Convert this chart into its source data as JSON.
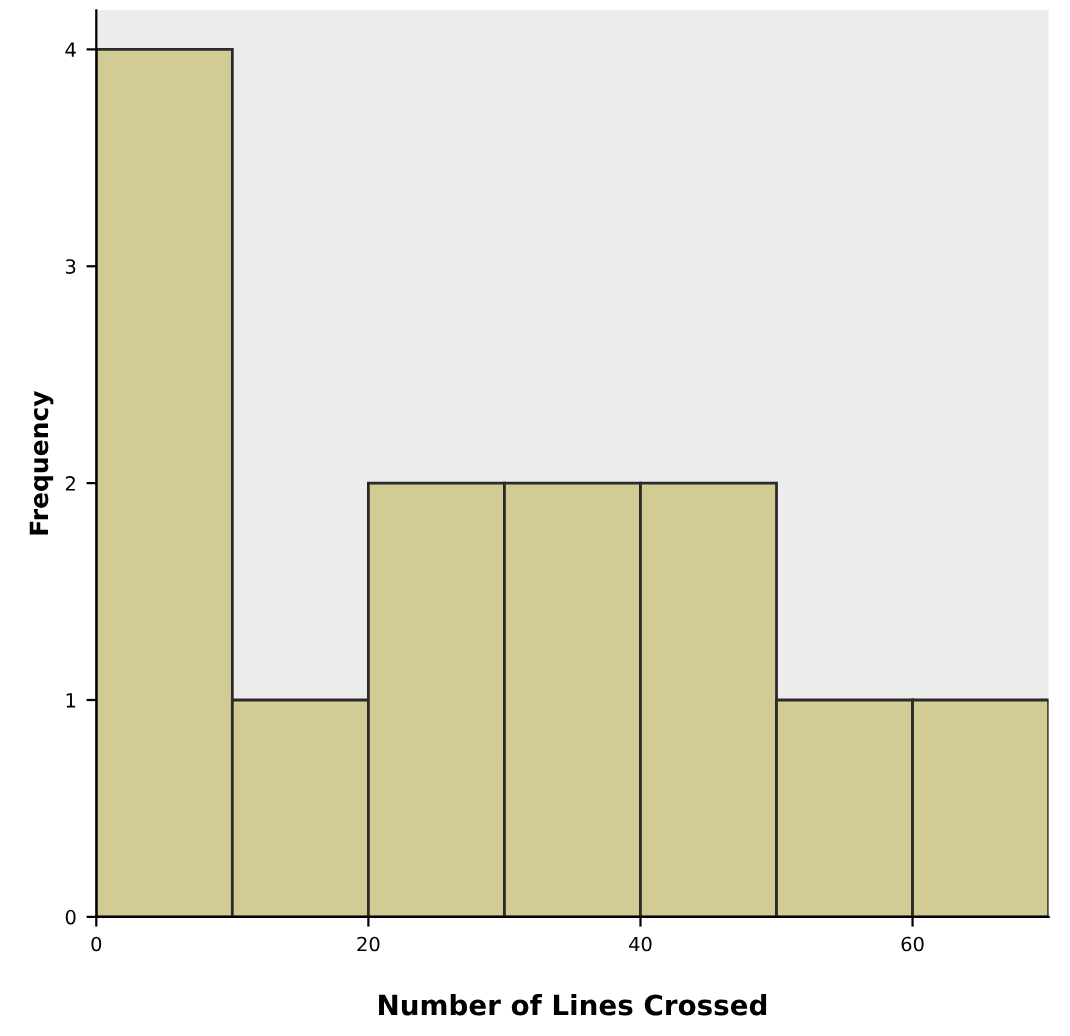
{
  "chart_data": {
    "type": "histogram",
    "xlabel": "Number of Lines Crossed",
    "ylabel": "Frequency",
    "bins": [
      0,
      10,
      20,
      30,
      40,
      50,
      60,
      70
    ],
    "values": [
      4,
      1,
      2,
      2,
      2,
      1,
      1
    ],
    "color": "#d3cb94",
    "xlim": [
      0,
      70
    ],
    "xticks": [
      0,
      20,
      40,
      60
    ],
    "ylim": [
      0,
      4.18
    ],
    "yticks": [
      0,
      1,
      2,
      3,
      4
    ],
    "grid": false,
    "legend": false
  }
}
